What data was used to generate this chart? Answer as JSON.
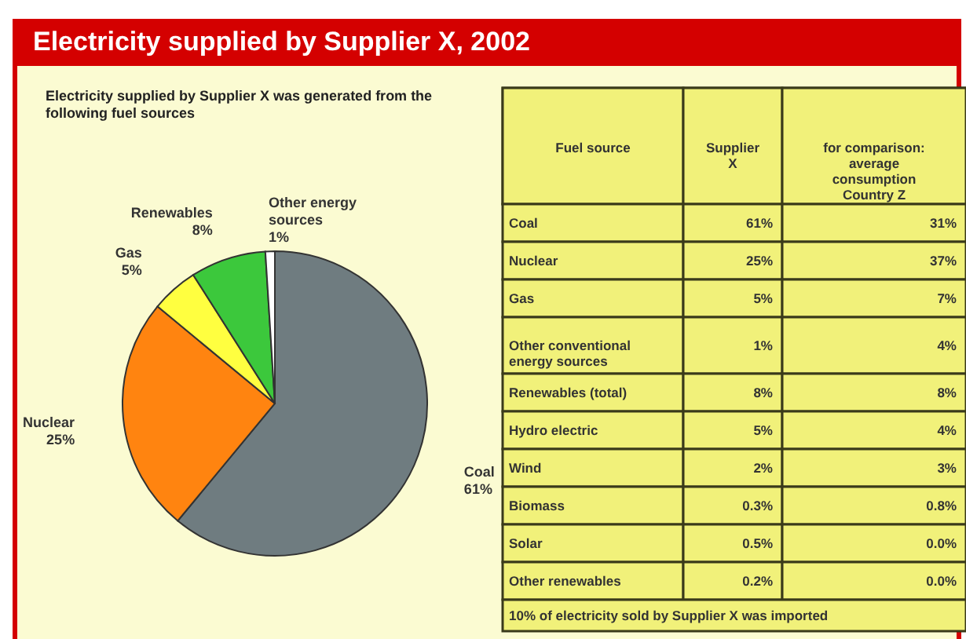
{
  "chart_data": [
    {
      "type": "pie",
      "title": "Electricity supplied by Supplier X, 2002",
      "subtitle": "Electricity supplied by Supplier X was generated from the following fuel sources",
      "categories": [
        "Coal",
        "Nuclear",
        "Gas",
        "Renewables",
        "Other energy sources"
      ],
      "values": [
        61,
        25,
        5,
        8,
        1
      ],
      "value_labels": [
        "61%",
        "25%",
        "5%",
        "8%",
        "1%"
      ],
      "colors": [
        "#6f7c80",
        "#ff8410",
        "#ffff40",
        "#3cc83c",
        "#ffffff"
      ]
    },
    {
      "type": "other",
      "annotations": [
        "Fuel source",
        "10% of electricity sold by Supplier X was imported"
      ],
      "categories": [
        "Coal",
        "Nuclear",
        "Gas",
        "Other conventional energy sources",
        "Renewables (total)",
        "Hydro electric",
        "Wind",
        "Biomass",
        "Solar",
        "Other renewables"
      ],
      "series": [
        {
          "name": "Supplier X",
          "values": [
            61,
            25,
            5,
            1,
            8,
            5,
            2,
            0.3,
            0.5,
            0.2
          ],
          "value_labels": [
            "61%",
            "25%",
            "5%",
            "1%",
            "8%",
            "5%",
            "2%",
            "0.3%",
            "0.5%",
            "0.2%"
          ]
        },
        {
          "name": "for comparison: average consumption Country Z",
          "values": [
            31,
            37,
            7,
            4,
            8,
            4,
            3,
            0.8,
            0.0,
            0.0
          ],
          "value_labels": [
            "31%",
            "37%",
            "7%",
            "4%",
            "8%",
            "4%",
            "3%",
            "0.8%",
            "0.0%",
            "0.0%"
          ]
        }
      ]
    }
  ]
}
